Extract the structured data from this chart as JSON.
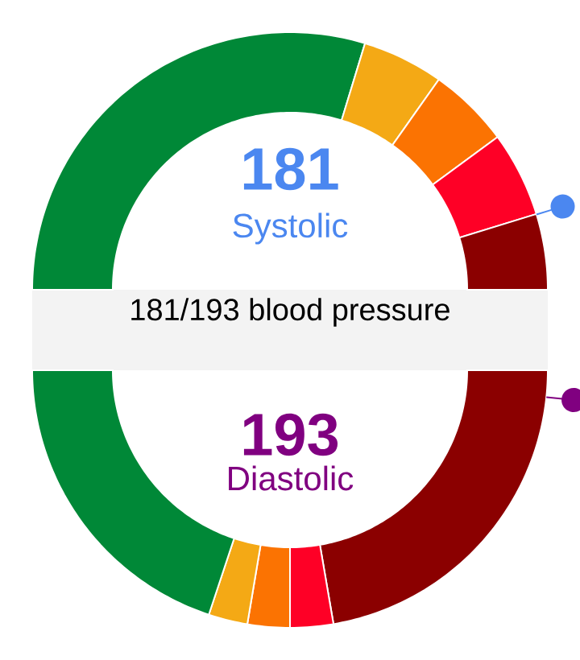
{
  "chart_data": [
    {
      "type": "donut",
      "title": "181",
      "subtitle": "Systolic",
      "annotations": [
        "181/193 blood pressure"
      ],
      "categories": [
        null,
        null,
        null,
        null,
        null
      ],
      "values": [
        59.4,
        10.2,
        10.2,
        10.7,
        9.5
      ],
      "colors": [
        "#008837",
        "#f4a915",
        "#fb7302",
        "#fe0026",
        "#8b0000"
      ]
    },
    {
      "type": "donut",
      "title": "193",
      "subtitle": "Diastolic",
      "categories": [
        null,
        null,
        null,
        null,
        null
      ],
      "values": [
        44.6,
        5.4,
        5.3,
        4.9,
        39.8
      ],
      "colors": [
        "#8b0000",
        "#fe0026",
        "#fb7302",
        "#f4a915",
        "#008837"
      ]
    }
  ]
}
